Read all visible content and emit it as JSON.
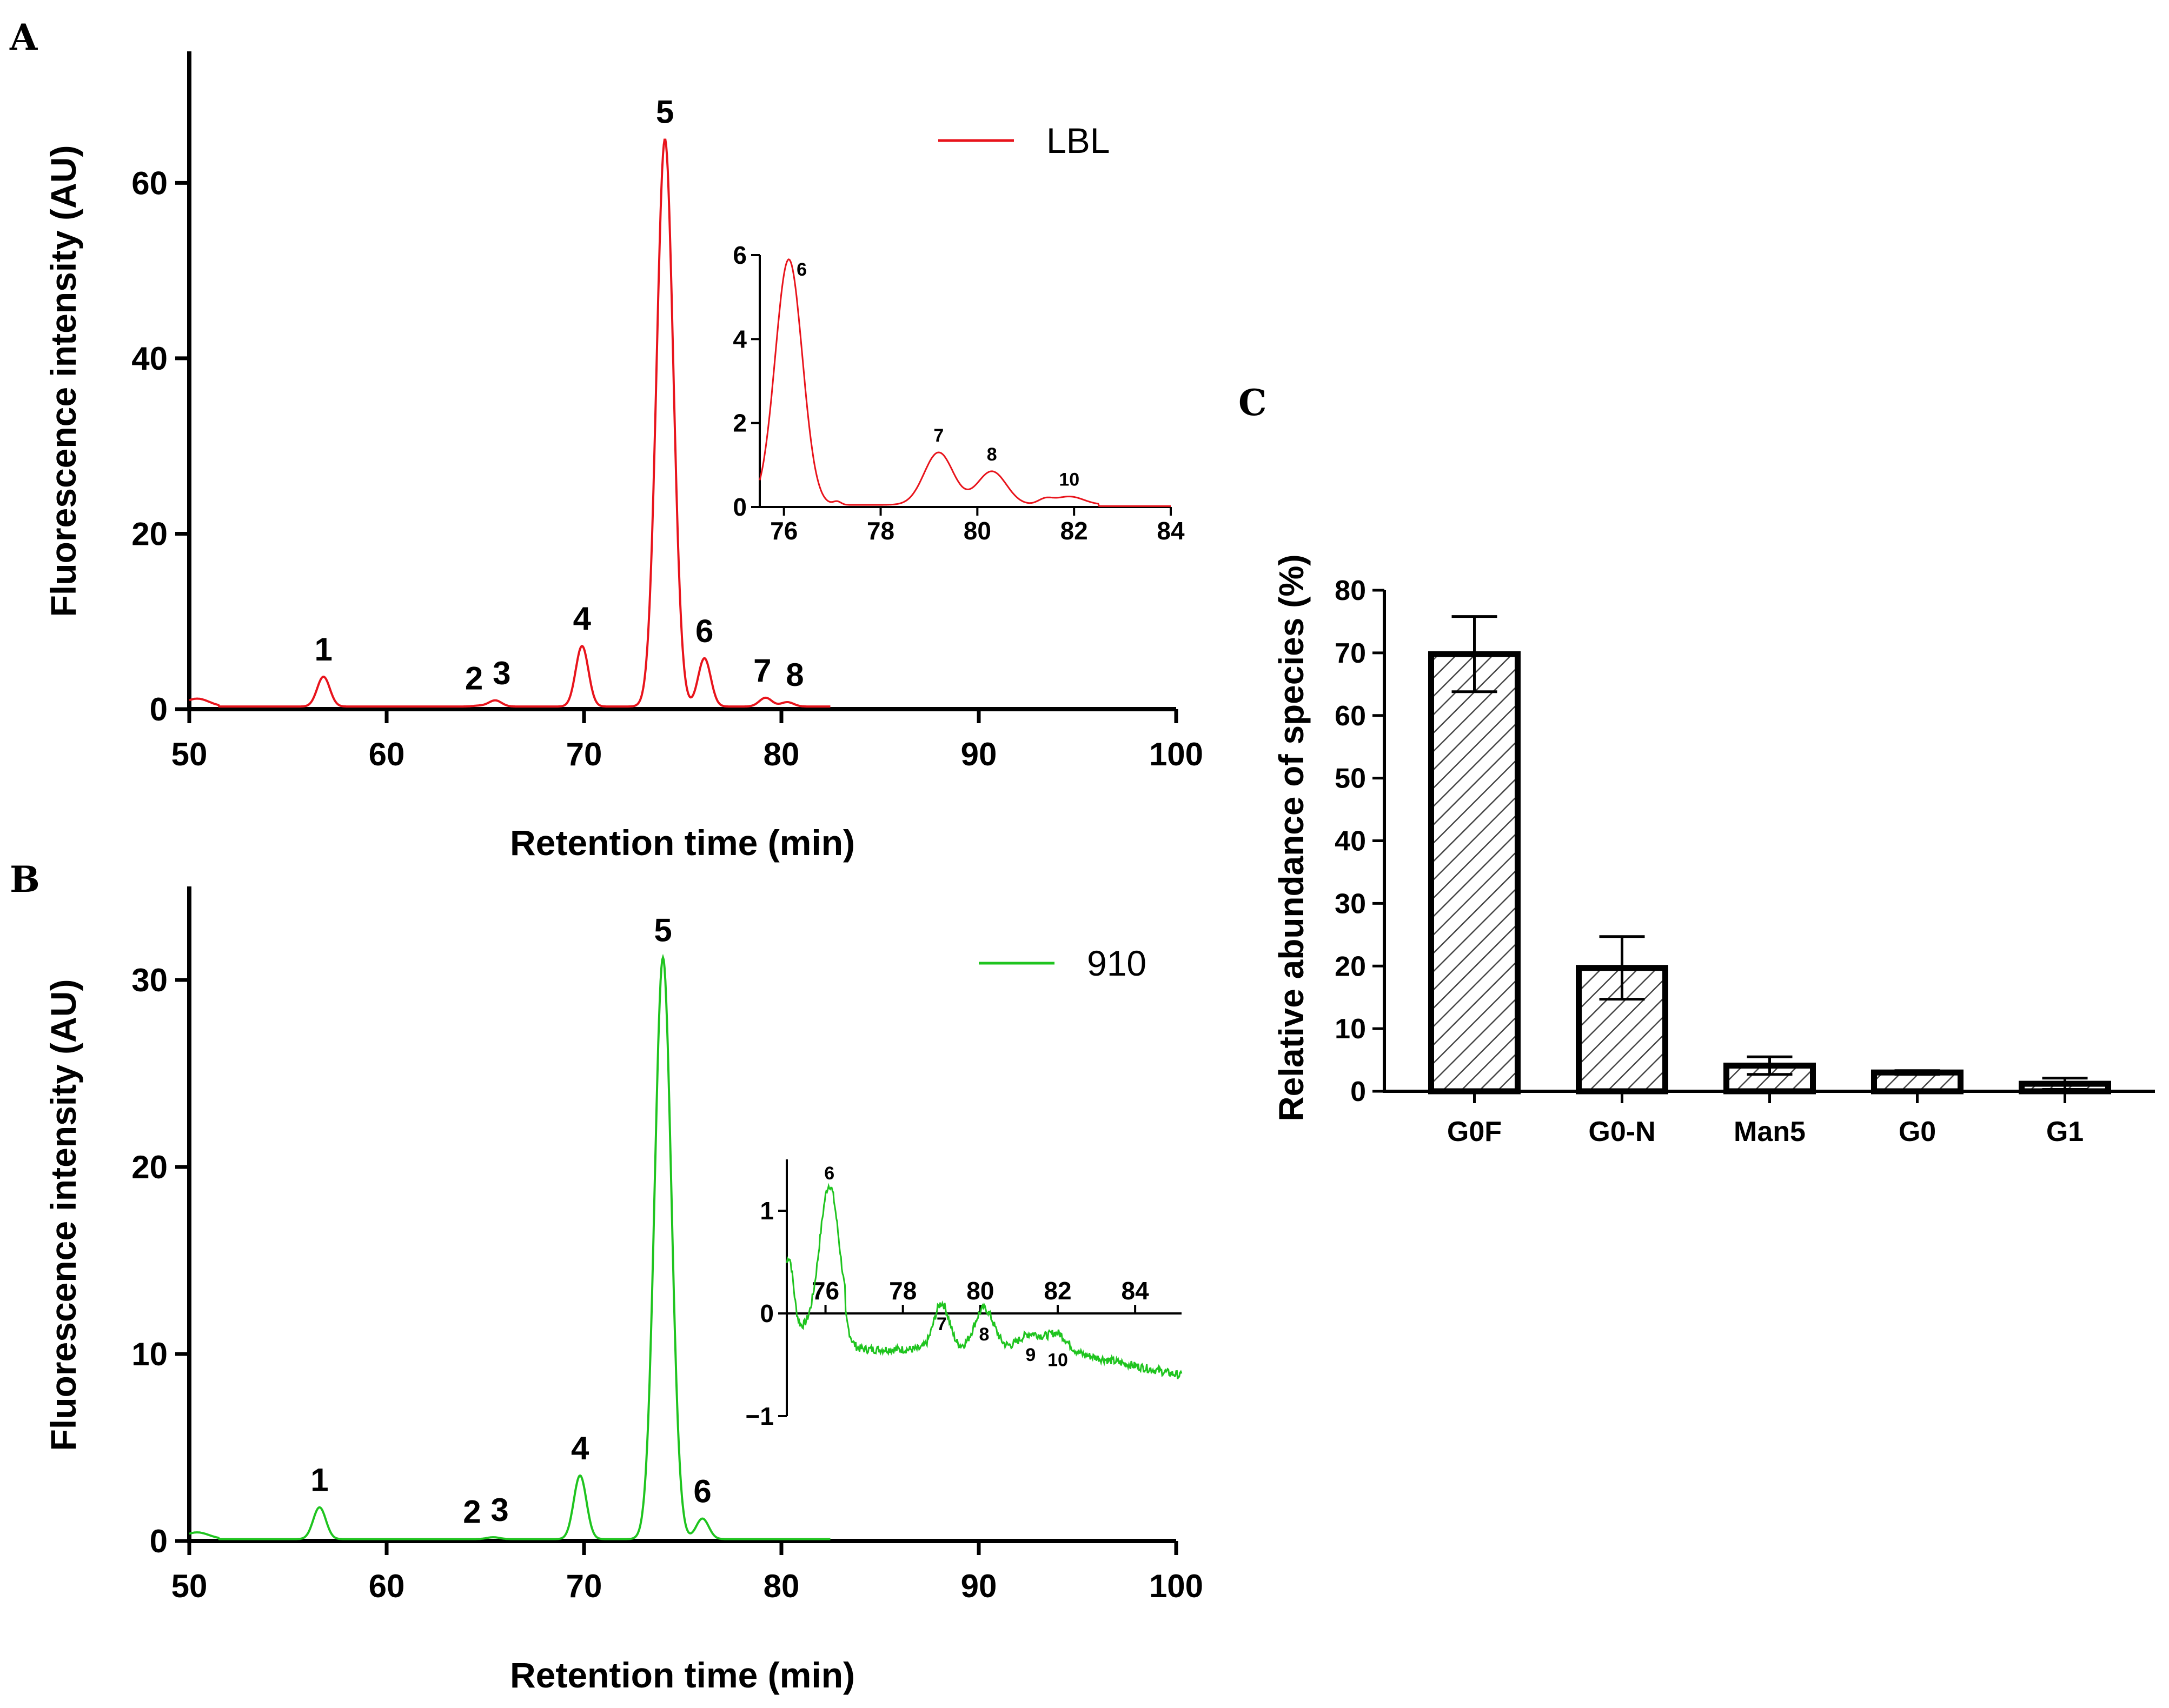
{
  "panels": {
    "A": {
      "letter": "A"
    },
    "B": {
      "letter": "B"
    },
    "C": {
      "letter": "C"
    }
  },
  "chart_data": [
    {
      "id": "A",
      "type": "line",
      "title": "",
      "xlabel": "Retention time (min)",
      "ylabel": "Fluorescence intensity (AU)",
      "xlim": [
        50,
        100
      ],
      "ylim": [
        0,
        75
      ],
      "xticks": [
        50,
        60,
        70,
        80,
        90,
        100
      ],
      "yticks": [
        0,
        20,
        40,
        60
      ],
      "color": "#e8141c",
      "legend": {
        "label": "LBL",
        "position": "top-right"
      },
      "baseline": 0.3,
      "peaks": [
        {
          "label": "1",
          "x": 56.8,
          "y": 3.7
        },
        {
          "label": "2",
          "x": 64.7,
          "y": 0.4
        },
        {
          "label": "3",
          "x": 65.5,
          "y": 1.0
        },
        {
          "label": "4",
          "x": 69.9,
          "y": 7.2
        },
        {
          "label": "5",
          "x": 74.1,
          "y": 65
        },
        {
          "label": "6",
          "x": 76.1,
          "y": 5.8
        },
        {
          "label": "7",
          "x": 79.2,
          "y": 1.3
        },
        {
          "label": "8",
          "x": 80.3,
          "y": 0.8
        }
      ],
      "inset": {
        "xlim": [
          75.5,
          84
        ],
        "ylim": [
          0,
          6
        ],
        "xticks": [
          76,
          78,
          80,
          82,
          84
        ],
        "yticks": [
          0,
          2,
          4,
          6
        ],
        "baseline": 0.05,
        "peaks": [
          {
            "label": "6",
            "x": 76.1,
            "y": 5.9
          },
          {
            "label": "7",
            "x": 79.2,
            "y": 1.3
          },
          {
            "label": "8",
            "x": 80.3,
            "y": 0.85
          },
          {
            "label": "10",
            "x": 81.9,
            "y": 0.25
          }
        ]
      }
    },
    {
      "id": "B",
      "type": "line",
      "title": "",
      "xlabel": "Retention time (min)",
      "ylabel": "Fluorescence intensity (AU)",
      "xlim": [
        50,
        100
      ],
      "ylim": [
        0,
        35
      ],
      "xticks": [
        50,
        60,
        70,
        80,
        90,
        100
      ],
      "yticks": [
        0,
        10,
        20,
        30
      ],
      "color": "#1fc41f",
      "legend": {
        "label": "910",
        "position": "top-right"
      },
      "baseline": 0.1,
      "peaks": [
        {
          "label": "1",
          "x": 56.6,
          "y": 1.8
        },
        {
          "label": "2",
          "x": 64.6,
          "y": 0.1
        },
        {
          "label": "3",
          "x": 65.4,
          "y": 0.2
        },
        {
          "label": "4",
          "x": 69.8,
          "y": 3.5
        },
        {
          "label": "5",
          "x": 74.0,
          "y": 31.2
        },
        {
          "label": "6",
          "x": 76.0,
          "y": 1.2
        }
      ],
      "inset": {
        "xlim": [
          75,
          85.2
        ],
        "ylim": [
          -1,
          1.5
        ],
        "xticks": [
          76,
          78,
          80,
          82,
          84
        ],
        "yticks": [
          -1,
          0,
          1
        ],
        "peaks": [
          {
            "label": "6",
            "x": 76.1,
            "y": 1.2
          },
          {
            "label": "7",
            "x": 79.0,
            "y": 0.1
          },
          {
            "label": "8",
            "x": 80.1,
            "y": 0.0
          },
          {
            "label": "9",
            "x": 81.3,
            "y": -0.2
          },
          {
            "label": "10",
            "x": 82.0,
            "y": -0.25
          }
        ]
      }
    },
    {
      "id": "C",
      "type": "bar",
      "title": "",
      "xlabel": "",
      "ylabel": "Relative abundance of species (%)",
      "ylim": [
        0,
        80
      ],
      "yticks": [
        0,
        10,
        20,
        30,
        40,
        50,
        60,
        70,
        80
      ],
      "categories": [
        "G0F",
        "G0-N",
        "Man5",
        "G0",
        "G1"
      ],
      "values": [
        69.8,
        19.7,
        4.1,
        3.0,
        1.2
      ],
      "errors": [
        6.0,
        5.0,
        1.4,
        0.3,
        0.9
      ],
      "fill": "hatched"
    }
  ]
}
